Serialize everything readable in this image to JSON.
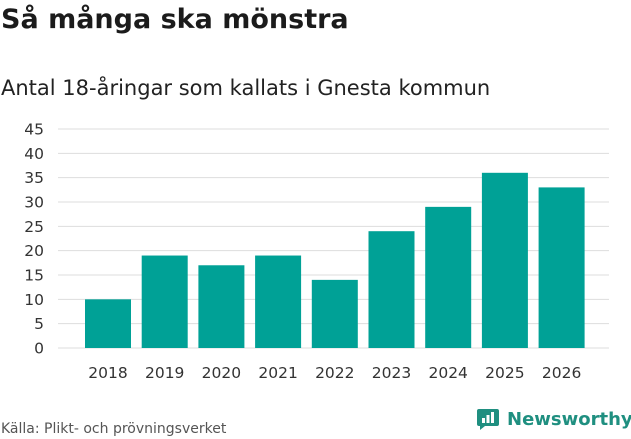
{
  "header": {
    "title": "Så många ska mönstra",
    "subtitle": "Antal 18-åringar som kallats i Gnesta kommun"
  },
  "footer": {
    "source": "Källa: Plikt- och prövningsverket",
    "brand": "Newsworthy",
    "brand_icon": "chart-speech-bubble-icon",
    "brand_color": "#1f8f80"
  },
  "chart_data": {
    "type": "bar",
    "categories": [
      "2018",
      "2019",
      "2020",
      "2021",
      "2022",
      "2023",
      "2024",
      "2025",
      "2026"
    ],
    "values": [
      10,
      19,
      17,
      19,
      14,
      24,
      29,
      36,
      33
    ],
    "ylim": [
      0,
      45
    ],
    "yticks": [
      0,
      5,
      10,
      15,
      20,
      25,
      30,
      35,
      40,
      45
    ],
    "grid": true,
    "legend": "none",
    "bar_color": "#00a196",
    "grid_color": "#dddddd",
    "xlabel": "",
    "ylabel": ""
  }
}
